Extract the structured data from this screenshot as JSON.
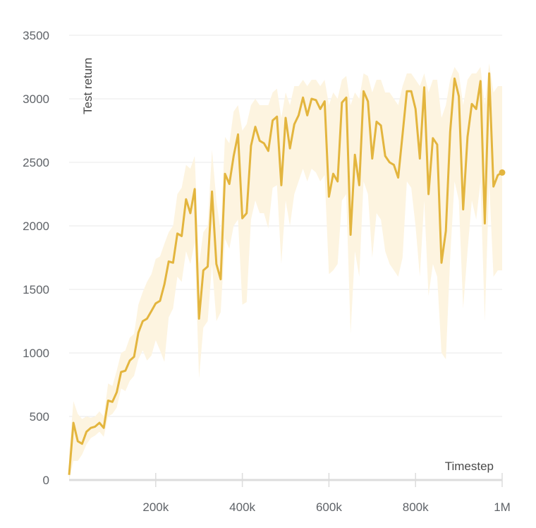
{
  "chart_data": {
    "type": "line",
    "title": "",
    "xlabel": "Timestep",
    "ylabel": "Test return",
    "xlim": [
      0,
      1000000
    ],
    "ylim": [
      0,
      3500
    ],
    "grid": true,
    "x_ticks": [
      {
        "value": 200000,
        "label": "200k"
      },
      {
        "value": 400000,
        "label": "400k"
      },
      {
        "value": 600000,
        "label": "600k"
      },
      {
        "value": 800000,
        "label": "800k"
      },
      {
        "value": 1000000,
        "label": "1M"
      }
    ],
    "y_ticks": [
      {
        "value": 0,
        "label": "0"
      },
      {
        "value": 500,
        "label": "500"
      },
      {
        "value": 1000,
        "label": "1000"
      },
      {
        "value": 1500,
        "label": "1500"
      },
      {
        "value": 2000,
        "label": "2000"
      },
      {
        "value": 2500,
        "label": "2500"
      },
      {
        "value": 3000,
        "label": "3000"
      },
      {
        "value": 3500,
        "label": "3500"
      }
    ],
    "colors": {
      "line": "#e3b53e",
      "band": "#fdf4e0",
      "grid": "#e8e8e8",
      "axis": "#dcdcdc"
    },
    "series": [
      {
        "x": [
          0,
          10000,
          20000,
          30000,
          40000,
          50000,
          60000,
          70000,
          80000,
          90000,
          100000,
          110000,
          120000,
          130000,
          140000,
          150000,
          160000,
          170000,
          180000,
          190000,
          200000,
          210000,
          220000,
          230000,
          240000,
          250000,
          260000,
          270000,
          280000,
          290000,
          300000,
          310000,
          320000,
          330000,
          340000,
          350000,
          360000,
          370000,
          380000,
          390000,
          400000,
          410000,
          420000,
          430000,
          440000,
          450000,
          460000,
          470000,
          480000,
          490000,
          500000,
          510000,
          520000,
          530000,
          540000,
          550000,
          560000,
          570000,
          580000,
          590000,
          600000,
          610000,
          620000,
          630000,
          640000,
          650000,
          660000,
          670000,
          680000,
          690000,
          700000,
          710000,
          720000,
          730000,
          740000,
          750000,
          760000,
          770000,
          780000,
          790000,
          800000,
          810000,
          820000,
          830000,
          840000,
          850000,
          860000,
          870000,
          880000,
          890000,
          900000,
          910000,
          920000,
          930000,
          940000,
          950000,
          960000,
          970000,
          980000,
          990000,
          1000000
        ],
        "y": [
          40,
          450,
          305,
          285,
          380,
          410,
          420,
          450,
          410,
          625,
          615,
          690,
          850,
          860,
          940,
          970,
          1160,
          1250,
          1270,
          1330,
          1390,
          1410,
          1540,
          1720,
          1710,
          1940,
          1920,
          2210,
          2100,
          2290,
          1270,
          1650,
          1680,
          2270,
          1700,
          1580,
          2410,
          2330,
          2550,
          2720,
          2060,
          2100,
          2630,
          2780,
          2670,
          2650,
          2590,
          2830,
          2860,
          2320,
          2850,
          2610,
          2800,
          2870,
          3010,
          2870,
          3000,
          2990,
          2920,
          2980,
          2230,
          2410,
          2350,
          2970,
          3010,
          1930,
          2560,
          2320,
          3060,
          2980,
          2530,
          2820,
          2790,
          2550,
          2500,
          2480,
          2380,
          2720,
          3060,
          3060,
          2920,
          2530,
          3090,
          2250,
          2690,
          2640,
          1710,
          1960,
          2740,
          3160,
          3020,
          2130,
          2700,
          2960,
          2920,
          3140,
          2020,
          3200,
          2310,
          2400,
          2420
        ],
        "lower": [
          0,
          150,
          150,
          200,
          280,
          330,
          350,
          380,
          340,
          500,
          520,
          570,
          720,
          700,
          780,
          820,
          950,
          1020,
          940,
          980,
          1100,
          1020,
          930,
          1280,
          1350,
          1600,
          1560,
          1800,
          1700,
          1870,
          800,
          1200,
          1250,
          1700,
          1250,
          1320,
          1900,
          1820,
          2000,
          2050,
          1380,
          1400,
          2050,
          2200,
          2100,
          2100,
          1980,
          2300,
          2320,
          1700,
          2200,
          2000,
          2250,
          2350,
          2450,
          2350,
          2450,
          2420,
          2350,
          2400,
          1620,
          1650,
          1700,
          2200,
          2250,
          1150,
          1800,
          1600,
          2350,
          2250,
          1750,
          2100,
          2050,
          1800,
          1700,
          1650,
          1600,
          1750,
          2350,
          2300,
          2000,
          1600,
          2200,
          1450,
          1700,
          1600,
          1000,
          950,
          1750,
          2350,
          2200,
          1350,
          1800,
          2200,
          2050,
          2350,
          1250,
          2350,
          1600,
          1650,
          1650
        ],
        "upper": [
          200,
          620,
          520,
          480,
          500,
          490,
          500,
          540,
          500,
          760,
          740,
          860,
          1000,
          1020,
          1120,
          1150,
          1380,
          1480,
          1560,
          1620,
          1740,
          1760,
          1860,
          1950,
          2000,
          2250,
          2300,
          2480,
          2450,
          2550,
          1700,
          1950,
          2000,
          2600,
          2200,
          1950,
          2700,
          2650,
          2900,
          2950,
          2750,
          2800,
          2950,
          3000,
          2950,
          2950,
          2950,
          3050,
          3080,
          2850,
          3050,
          2950,
          3100,
          3100,
          3150,
          3100,
          3150,
          3150,
          3100,
          3150,
          2950,
          3050,
          3000,
          3150,
          3180,
          2950,
          3050,
          3000,
          3200,
          3180,
          3050,
          3150,
          3150,
          3050,
          3050,
          3000,
          2950,
          3100,
          3200,
          3200,
          3150,
          3100,
          3200,
          3050,
          3150,
          3150,
          2850,
          2950,
          3150,
          3250,
          3200,
          2950,
          3150,
          3200,
          3200,
          3250,
          2950,
          3280,
          3050,
          3100,
          3100
        ]
      }
    ]
  }
}
